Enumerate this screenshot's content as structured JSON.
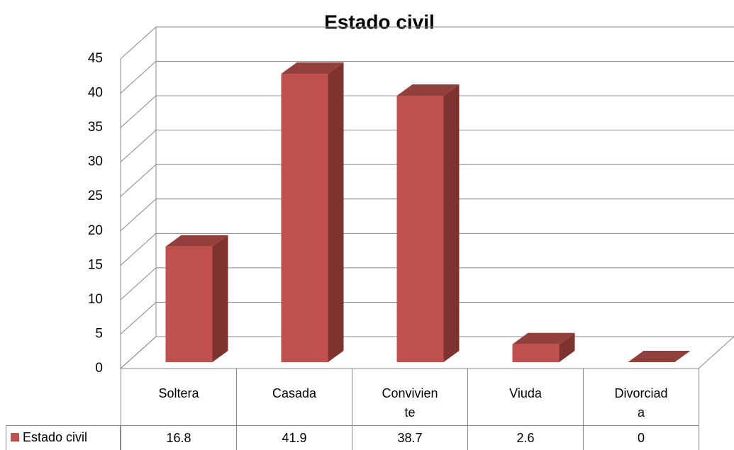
{
  "chart_data": {
    "type": "bar",
    "title": "Estado civil",
    "categories": [
      "Soltera",
      "Casada",
      "Conviviente",
      "Viuda",
      "Divorciada"
    ],
    "series": [
      {
        "name": "Estado civil",
        "color": "#c0504d",
        "values": [
          16.8,
          41.9,
          38.7,
          2.6,
          0
        ]
      }
    ],
    "ylim": [
      0,
      45
    ],
    "yticks": [
      0,
      5,
      10,
      15,
      20,
      25,
      30,
      35,
      40,
      45
    ],
    "grid": true
  }
}
